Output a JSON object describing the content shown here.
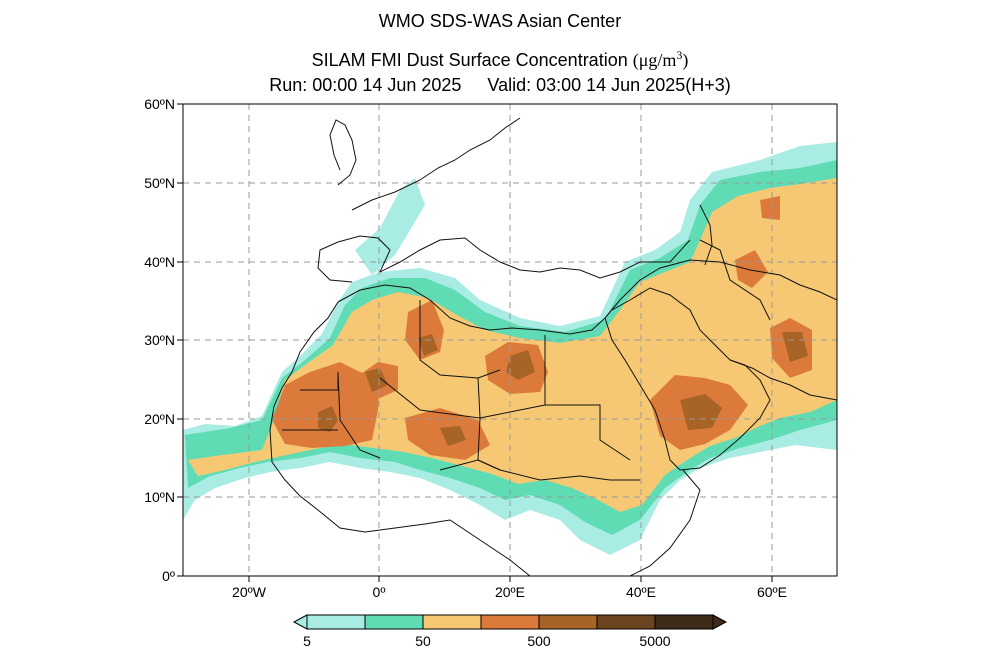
{
  "titles": {
    "line1": "WMO SDS-WAS Asian Center",
    "line2_prefix": "SILAM FMI Dust Surface Concentration",
    "line2_unit_open": "(μg/m",
    "line2_unit_exp": "3",
    "line2_unit_close": ")",
    "run": "Run: 00:00 14 Jun 2025",
    "valid": "Valid: 03:00 14 Jun 2025(H+3)"
  },
  "map": {
    "lon_range": [
      -30,
      70
    ],
    "lat_range": [
      0,
      60
    ],
    "lat_labels": [
      "60ºN",
      "50ºN",
      "40ºN",
      "30ºN",
      "20ºN",
      "10ºN",
      "0º"
    ],
    "lon_labels": [
      "20ºW",
      "0º",
      "20ºE",
      "40ºE",
      "60ºE"
    ],
    "grid": true
  },
  "colorbar": {
    "labels": [
      "5",
      "50",
      "500",
      "5000"
    ],
    "colors": [
      "#a8ece4",
      "#5fdcb4",
      "#f7c874",
      "#dc7a3c",
      "#a86426",
      "#6c4420",
      "#3e2a18"
    ]
  }
}
